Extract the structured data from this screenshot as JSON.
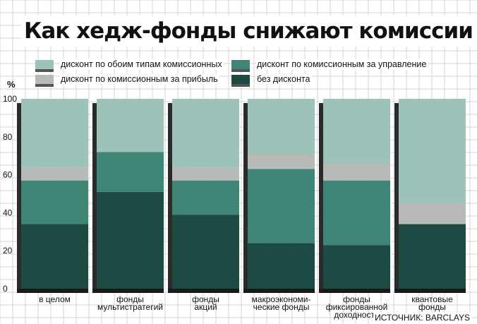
{
  "title": "Как хедж-фонды снижают комиссии",
  "source": "ИСТОЧНИК: BARCLAYS",
  "legend": [
    {
      "label": "дисконт по обоим типам комиссионных",
      "color": "#9dc2b9"
    },
    {
      "label": "дисконт по комиссионным за управление",
      "color": "#3e8576"
    },
    {
      "label": "дисконт по комиссионным за прибыль",
      "color": "#b8bab8"
    },
    {
      "label": "без дисконта",
      "color": "#1d4a43"
    }
  ],
  "chart_data": {
    "type": "bar",
    "stacked": true,
    "ylabel": "%",
    "ylim": [
      0,
      100
    ],
    "yticks": [
      0,
      20,
      40,
      60,
      80,
      100
    ],
    "categories": [
      [
        "в целом"
      ],
      [
        "фонды",
        "мультистратегий"
      ],
      [
        "фонды",
        "акций"
      ],
      [
        "макроэкономи-",
        "ческие фонды"
      ],
      [
        "фонды",
        "фиксированной",
        "доходности"
      ],
      [
        "квантовые",
        "фонды"
      ]
    ],
    "series": [
      {
        "name": "без дисконта",
        "color": "#1d4a43",
        "values": [
          34,
          51,
          39,
          24,
          23,
          34
        ]
      },
      {
        "name": "дисконт по комиссионным за управление",
        "color": "#3e8576",
        "values": [
          23,
          21,
          18,
          39,
          34,
          0
        ]
      },
      {
        "name": "дисконт по комиссионным за прибыль",
        "color": "#b8bab8",
        "values": [
          7,
          0,
          7,
          8,
          9,
          11
        ]
      },
      {
        "name": "дисконт по обоим типам комиссионных",
        "color": "#9dc2b9",
        "values": [
          36,
          28,
          36,
          29,
          34,
          55
        ]
      }
    ]
  }
}
